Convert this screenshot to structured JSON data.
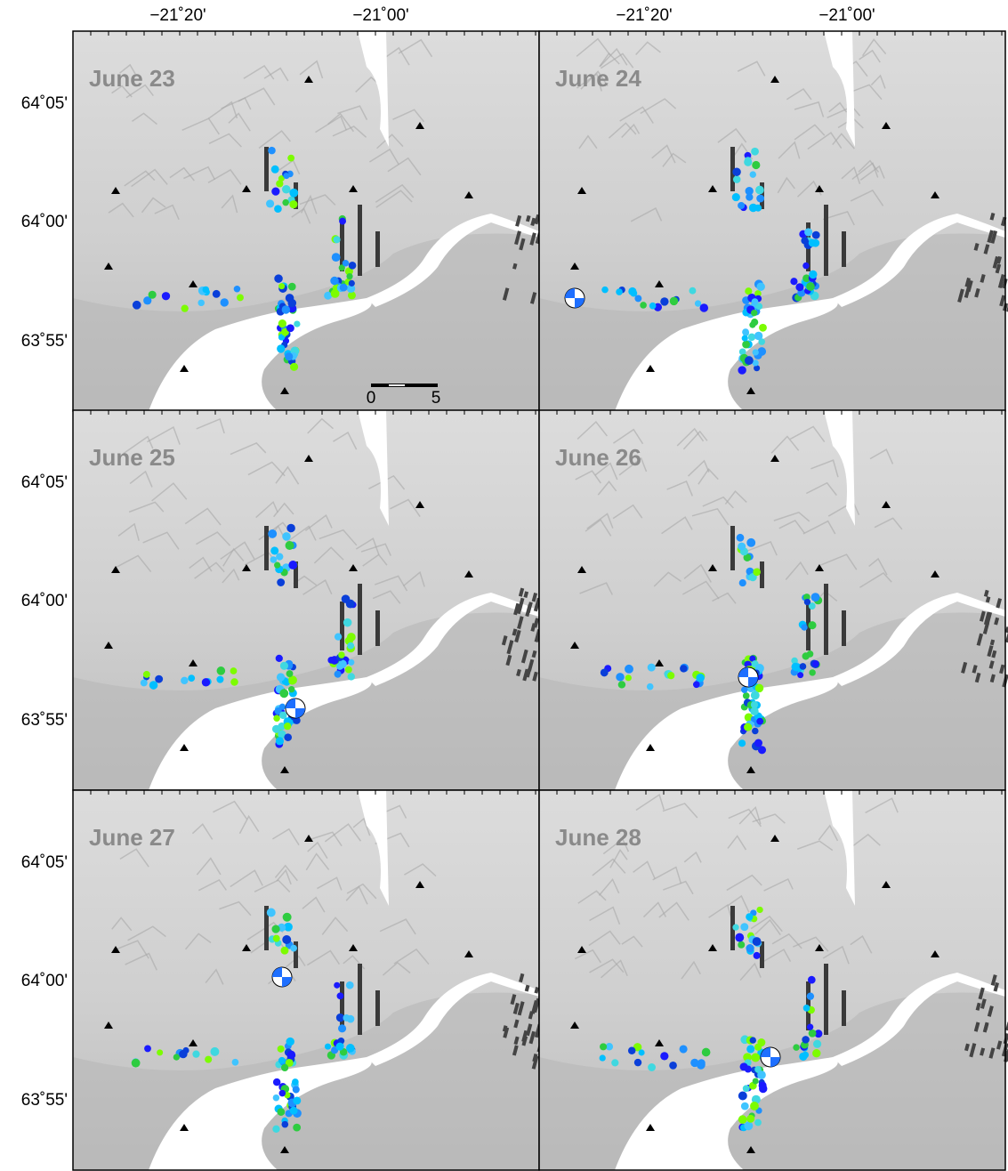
{
  "x_axis_labels": [
    "−21˚20'",
    "−21˚00'"
  ],
  "y_axis_labels": [
    "64˚05'",
    "64˚00'",
    "63˚55'"
  ],
  "panels": [
    {
      "label": "June 23"
    },
    {
      "label": "June 24"
    },
    {
      "label": "June 25"
    },
    {
      "label": "June 26"
    },
    {
      "label": "June 27"
    },
    {
      "label": "June 28"
    }
  ],
  "scale_bar": {
    "labels": [
      "0",
      "5"
    ]
  }
}
